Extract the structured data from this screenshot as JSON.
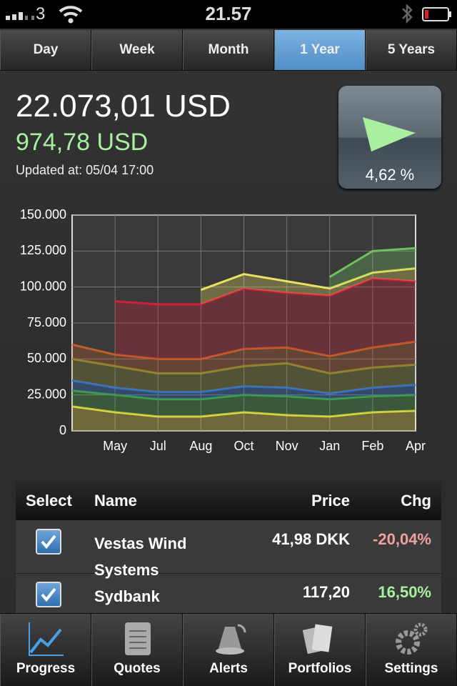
{
  "status_bar": {
    "carrier": "3",
    "time": "21.57"
  },
  "tabs": [
    "Day",
    "Week",
    "Month",
    "1 Year",
    "5 Years"
  ],
  "active_tab": 3,
  "summary": {
    "total": "22.073,01 USD",
    "change": "974,78 USD",
    "updated": "Updated at: 05/04 17:00",
    "percent": "4,62 %"
  },
  "chart_data": {
    "type": "stacked-area",
    "categories": [
      null,
      "May",
      "Jul",
      "Aug",
      "Oct",
      "Nov",
      "Jan",
      "Feb",
      "Apr"
    ],
    "series": [
      {
        "color": "#e8d840",
        "values": [
          17000,
          13000,
          10000,
          10000,
          13000,
          11000,
          10000,
          13000,
          14000
        ]
      },
      {
        "color": "#3fa040",
        "values": [
          11000,
          12000,
          12000,
          12000,
          12000,
          13000,
          12000,
          11000,
          11000
        ]
      },
      {
        "color": "#2f6fd0",
        "values": [
          7000,
          5000,
          5000,
          5000,
          6000,
          6000,
          4000,
          6000,
          7000
        ]
      },
      {
        "color": "#8a8a30",
        "values": [
          15000,
          15000,
          13000,
          13000,
          14000,
          17000,
          14000,
          14000,
          14000
        ]
      },
      {
        "color": "#c0602a",
        "values": [
          10000,
          8000,
          10000,
          10000,
          12000,
          11000,
          12000,
          14000,
          16000
        ]
      },
      {
        "color": "#d0203a",
        "values": [
          null,
          37000,
          38000,
          38000,
          42000,
          38000,
          42000,
          48000,
          42000
        ]
      },
      {
        "color": "#e8e060",
        "values": [
          null,
          null,
          null,
          10000,
          10000,
          8000,
          5000,
          4000,
          9000
        ]
      },
      {
        "color": "#70c060",
        "values": [
          null,
          null,
          null,
          null,
          null,
          null,
          8000,
          15000,
          14000
        ]
      }
    ],
    "ylim": [
      0,
      150000
    ],
    "yticks": [
      0,
      {
        "value": 25000,
        "label": "25.000"
      },
      {
        "value": 50000,
        "label": "50.000"
      },
      {
        "value": 75000,
        "label": "75.000"
      },
      {
        "value": 100000,
        "label": "100.000"
      },
      {
        "value": 125000,
        "label": "125.000"
      },
      {
        "value": 150000,
        "label": "150.000"
      }
    ],
    "grid": true
  },
  "table": {
    "columns": [
      "Select",
      "Name",
      "Price",
      "Chg"
    ],
    "rows": [
      {
        "selected": true,
        "name": "Vestas Wind Systems",
        "price": "41,98 DKK",
        "change": "-20,04%",
        "change_color": "#f0a0a0"
      },
      {
        "selected": true,
        "name": "Sydbank",
        "price": "117,20",
        "change": "16,50%",
        "change_color": "#a8f0a0"
      }
    ]
  },
  "bottom_tabs": [
    "Progress",
    "Quotes",
    "Alerts",
    "Portfolios",
    "Settings"
  ]
}
